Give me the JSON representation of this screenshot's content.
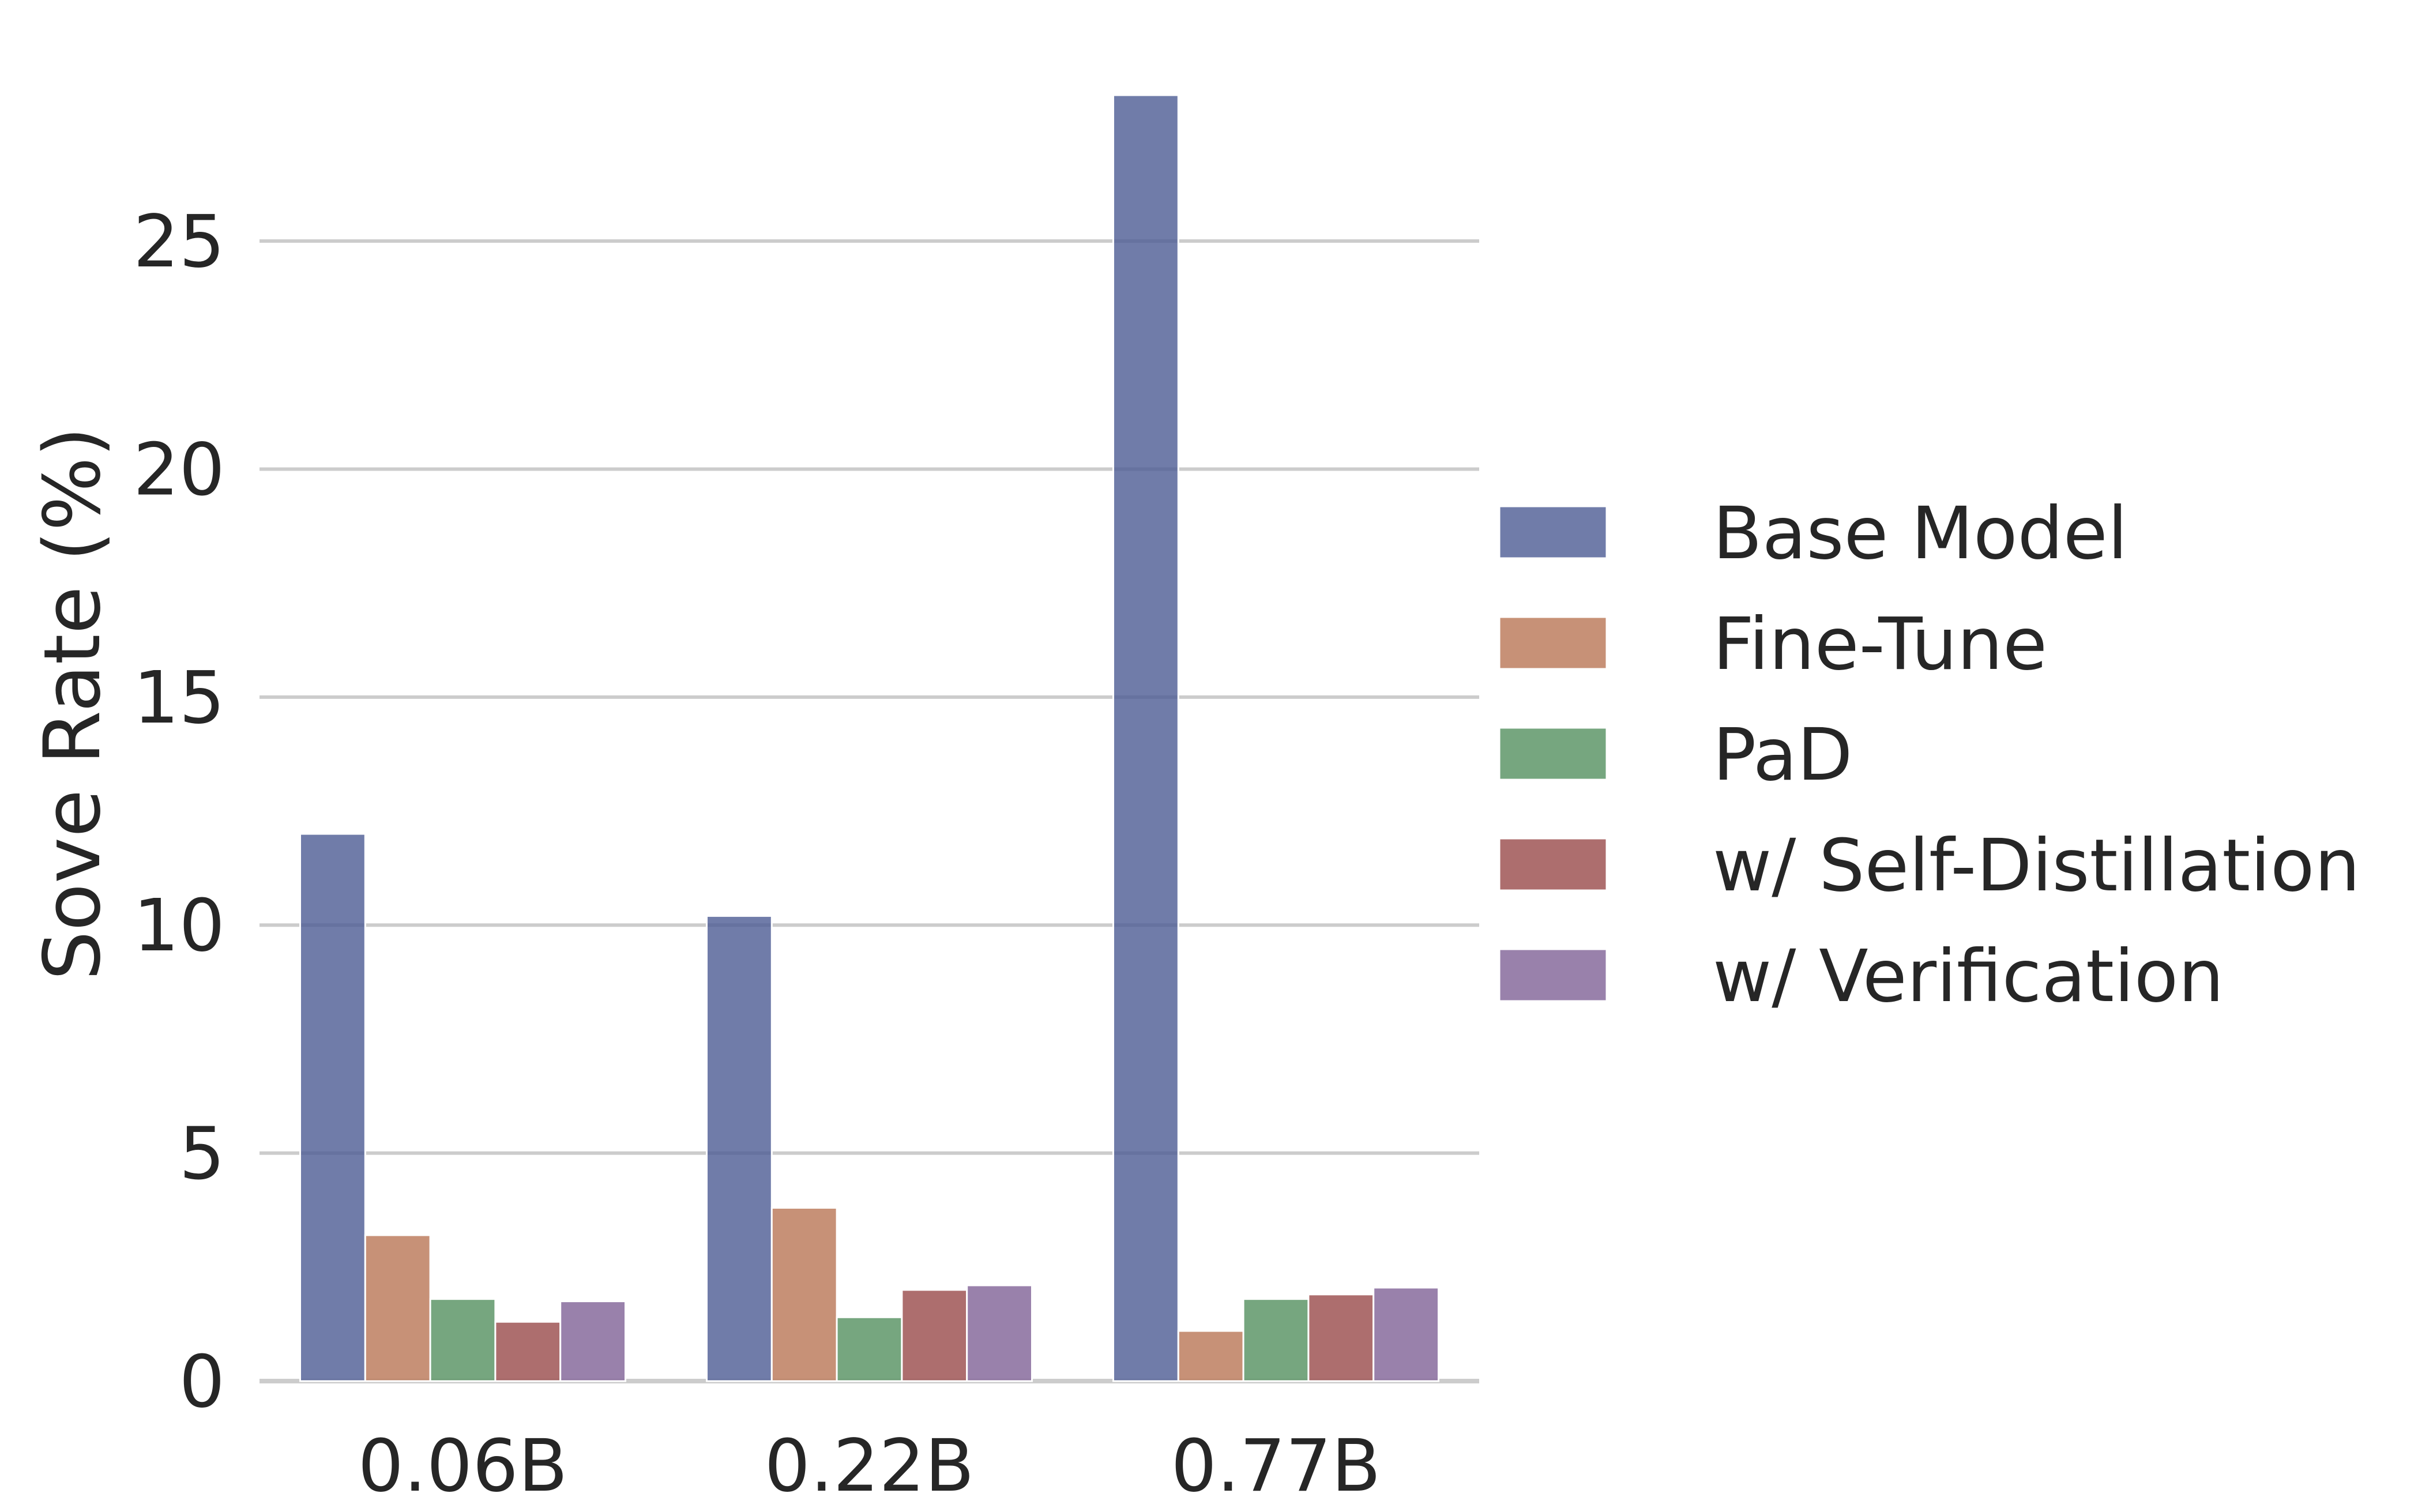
{
  "chart_data": {
    "type": "bar",
    "title": "",
    "xlabel": "",
    "ylabel": "Sove Rate (%)",
    "categories": [
      "0.06B",
      "0.22B",
      "0.77B"
    ],
    "series": [
      {
        "name": "Base Model",
        "values": [
          12.0,
          10.2,
          28.2
        ],
        "color": "#4c5b94"
      },
      {
        "name": "Fine-Tune",
        "values": [
          3.2,
          3.8,
          1.1
        ],
        "color": "#b97655"
      },
      {
        "name": "PaD",
        "values": [
          1.8,
          1.4,
          1.8
        ],
        "color": "#54905f"
      },
      {
        "name": "w/ Self-Distillation",
        "values": [
          1.3,
          2.0,
          1.9
        ],
        "color": "#994a4a"
      },
      {
        "name": "w/ Verification",
        "values": [
          1.75,
          2.1,
          2.05
        ],
        "color": "#7f6196"
      }
    ],
    "ylim": [
      0,
      28.2
    ],
    "yticks": [
      0,
      5,
      10,
      15,
      20,
      25
    ],
    "grid": true,
    "legend_position": "right"
  }
}
